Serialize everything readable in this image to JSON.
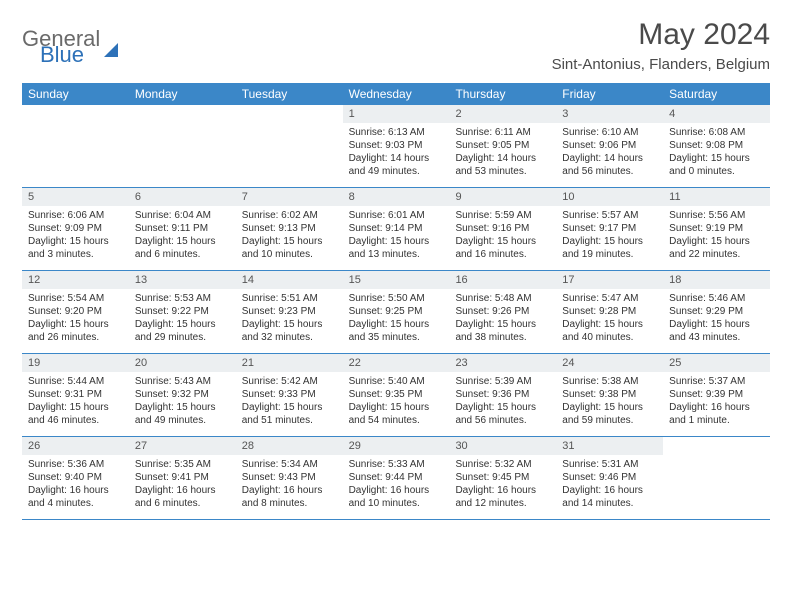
{
  "logo": {
    "general": "General",
    "blue": "Blue"
  },
  "title": "May 2024",
  "location": "Sint-Antonius, Flanders, Belgium",
  "header_bg": "#3b87c8",
  "header_text_color": "#ffffff",
  "daynum_bg": "#eceff1",
  "border_color": "#3b87c8",
  "text_color": "#333333",
  "dayNames": [
    "Sunday",
    "Monday",
    "Tuesday",
    "Wednesday",
    "Thursday",
    "Friday",
    "Saturday"
  ],
  "weeks": [
    [
      {
        "n": "",
        "sr": "",
        "ss": "",
        "dl": ""
      },
      {
        "n": "",
        "sr": "",
        "ss": "",
        "dl": ""
      },
      {
        "n": "",
        "sr": "",
        "ss": "",
        "dl": ""
      },
      {
        "n": "1",
        "sr": "Sunrise: 6:13 AM",
        "ss": "Sunset: 9:03 PM",
        "dl": "Daylight: 14 hours and 49 minutes."
      },
      {
        "n": "2",
        "sr": "Sunrise: 6:11 AM",
        "ss": "Sunset: 9:05 PM",
        "dl": "Daylight: 14 hours and 53 minutes."
      },
      {
        "n": "3",
        "sr": "Sunrise: 6:10 AM",
        "ss": "Sunset: 9:06 PM",
        "dl": "Daylight: 14 hours and 56 minutes."
      },
      {
        "n": "4",
        "sr": "Sunrise: 6:08 AM",
        "ss": "Sunset: 9:08 PM",
        "dl": "Daylight: 15 hours and 0 minutes."
      }
    ],
    [
      {
        "n": "5",
        "sr": "Sunrise: 6:06 AM",
        "ss": "Sunset: 9:09 PM",
        "dl": "Daylight: 15 hours and 3 minutes."
      },
      {
        "n": "6",
        "sr": "Sunrise: 6:04 AM",
        "ss": "Sunset: 9:11 PM",
        "dl": "Daylight: 15 hours and 6 minutes."
      },
      {
        "n": "7",
        "sr": "Sunrise: 6:02 AM",
        "ss": "Sunset: 9:13 PM",
        "dl": "Daylight: 15 hours and 10 minutes."
      },
      {
        "n": "8",
        "sr": "Sunrise: 6:01 AM",
        "ss": "Sunset: 9:14 PM",
        "dl": "Daylight: 15 hours and 13 minutes."
      },
      {
        "n": "9",
        "sr": "Sunrise: 5:59 AM",
        "ss": "Sunset: 9:16 PM",
        "dl": "Daylight: 15 hours and 16 minutes."
      },
      {
        "n": "10",
        "sr": "Sunrise: 5:57 AM",
        "ss": "Sunset: 9:17 PM",
        "dl": "Daylight: 15 hours and 19 minutes."
      },
      {
        "n": "11",
        "sr": "Sunrise: 5:56 AM",
        "ss": "Sunset: 9:19 PM",
        "dl": "Daylight: 15 hours and 22 minutes."
      }
    ],
    [
      {
        "n": "12",
        "sr": "Sunrise: 5:54 AM",
        "ss": "Sunset: 9:20 PM",
        "dl": "Daylight: 15 hours and 26 minutes."
      },
      {
        "n": "13",
        "sr": "Sunrise: 5:53 AM",
        "ss": "Sunset: 9:22 PM",
        "dl": "Daylight: 15 hours and 29 minutes."
      },
      {
        "n": "14",
        "sr": "Sunrise: 5:51 AM",
        "ss": "Sunset: 9:23 PM",
        "dl": "Daylight: 15 hours and 32 minutes."
      },
      {
        "n": "15",
        "sr": "Sunrise: 5:50 AM",
        "ss": "Sunset: 9:25 PM",
        "dl": "Daylight: 15 hours and 35 minutes."
      },
      {
        "n": "16",
        "sr": "Sunrise: 5:48 AM",
        "ss": "Sunset: 9:26 PM",
        "dl": "Daylight: 15 hours and 38 minutes."
      },
      {
        "n": "17",
        "sr": "Sunrise: 5:47 AM",
        "ss": "Sunset: 9:28 PM",
        "dl": "Daylight: 15 hours and 40 minutes."
      },
      {
        "n": "18",
        "sr": "Sunrise: 5:46 AM",
        "ss": "Sunset: 9:29 PM",
        "dl": "Daylight: 15 hours and 43 minutes."
      }
    ],
    [
      {
        "n": "19",
        "sr": "Sunrise: 5:44 AM",
        "ss": "Sunset: 9:31 PM",
        "dl": "Daylight: 15 hours and 46 minutes."
      },
      {
        "n": "20",
        "sr": "Sunrise: 5:43 AM",
        "ss": "Sunset: 9:32 PM",
        "dl": "Daylight: 15 hours and 49 minutes."
      },
      {
        "n": "21",
        "sr": "Sunrise: 5:42 AM",
        "ss": "Sunset: 9:33 PM",
        "dl": "Daylight: 15 hours and 51 minutes."
      },
      {
        "n": "22",
        "sr": "Sunrise: 5:40 AM",
        "ss": "Sunset: 9:35 PM",
        "dl": "Daylight: 15 hours and 54 minutes."
      },
      {
        "n": "23",
        "sr": "Sunrise: 5:39 AM",
        "ss": "Sunset: 9:36 PM",
        "dl": "Daylight: 15 hours and 56 minutes."
      },
      {
        "n": "24",
        "sr": "Sunrise: 5:38 AM",
        "ss": "Sunset: 9:38 PM",
        "dl": "Daylight: 15 hours and 59 minutes."
      },
      {
        "n": "25",
        "sr": "Sunrise: 5:37 AM",
        "ss": "Sunset: 9:39 PM",
        "dl": "Daylight: 16 hours and 1 minute."
      }
    ],
    [
      {
        "n": "26",
        "sr": "Sunrise: 5:36 AM",
        "ss": "Sunset: 9:40 PM",
        "dl": "Daylight: 16 hours and 4 minutes."
      },
      {
        "n": "27",
        "sr": "Sunrise: 5:35 AM",
        "ss": "Sunset: 9:41 PM",
        "dl": "Daylight: 16 hours and 6 minutes."
      },
      {
        "n": "28",
        "sr": "Sunrise: 5:34 AM",
        "ss": "Sunset: 9:43 PM",
        "dl": "Daylight: 16 hours and 8 minutes."
      },
      {
        "n": "29",
        "sr": "Sunrise: 5:33 AM",
        "ss": "Sunset: 9:44 PM",
        "dl": "Daylight: 16 hours and 10 minutes."
      },
      {
        "n": "30",
        "sr": "Sunrise: 5:32 AM",
        "ss": "Sunset: 9:45 PM",
        "dl": "Daylight: 16 hours and 12 minutes."
      },
      {
        "n": "31",
        "sr": "Sunrise: 5:31 AM",
        "ss": "Sunset: 9:46 PM",
        "dl": "Daylight: 16 hours and 14 minutes."
      },
      {
        "n": "",
        "sr": "",
        "ss": "",
        "dl": ""
      }
    ]
  ]
}
